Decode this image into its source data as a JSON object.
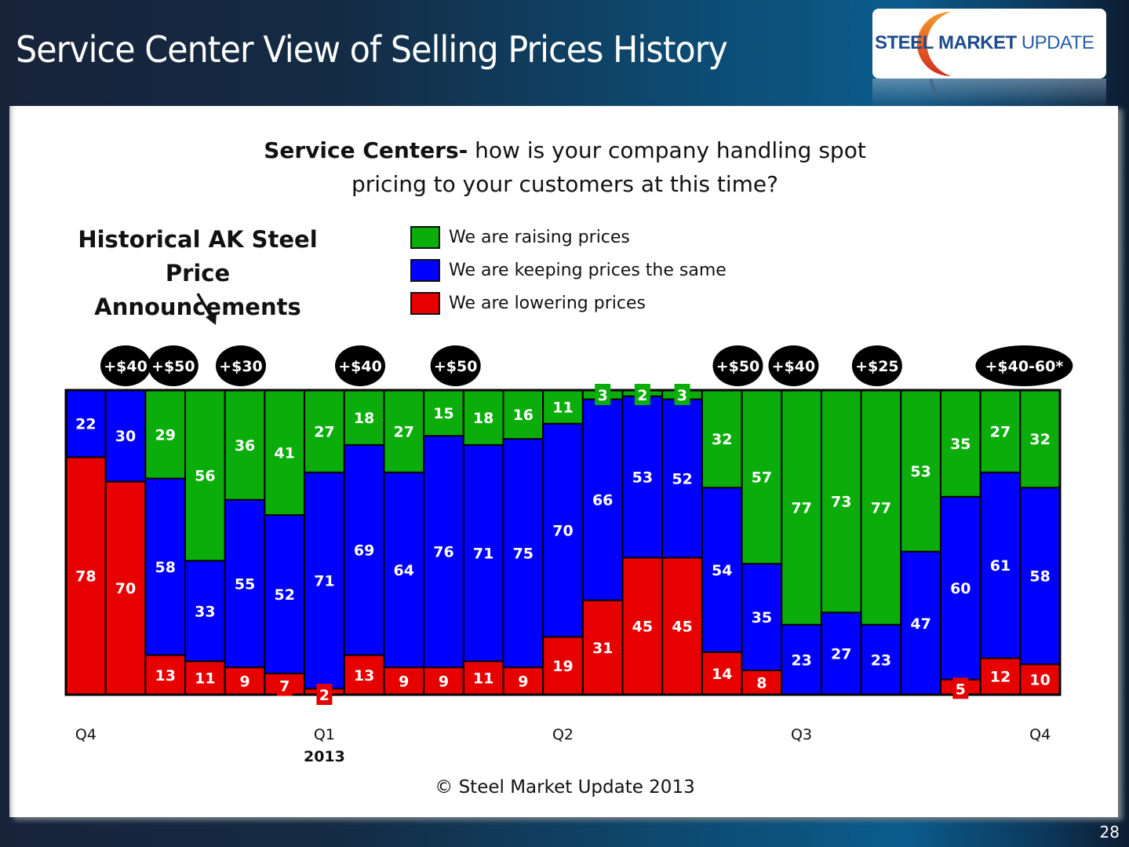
{
  "slide": {
    "title": "Service Center View of Selling Prices History",
    "page_number": "28",
    "copyright": "© Steel Market Update 2013"
  },
  "logo": {
    "word1": "STEEL",
    "word2": "MARKET",
    "word3": "UPDATE",
    "colors": {
      "text": "#1e4b8c",
      "arc_top": "#f39a2b",
      "arc_bottom": "#d42a1e"
    }
  },
  "question": {
    "bold": "Service Centers-",
    "line1_rest": " how is your company handling spot",
    "line2": "pricing to your customers at this time?"
  },
  "annotation": {
    "line1": "Historical AK Steel",
    "line2": "Price Announcements"
  },
  "chart_data": {
    "type": "bar",
    "stacked": true,
    "normalized_percent": true,
    "title": "Service Centers- how is your company handling spot pricing to your customers at this time?",
    "xlabel": "",
    "ylabel": "",
    "ylim": [
      0,
      100
    ],
    "grid": false,
    "legend_position": "top",
    "series": [
      {
        "name": "We are lowering prices",
        "color": "#e60000",
        "values": [
          78,
          70,
          13,
          11,
          9,
          7,
          2,
          13,
          9,
          9,
          11,
          9,
          19,
          31,
          45,
          45,
          14,
          8,
          0,
          0,
          0,
          0,
          5,
          12,
          10
        ]
      },
      {
        "name": "We are keeping prices the same",
        "color": "#0000ff",
        "values": [
          22,
          30,
          58,
          33,
          55,
          52,
          71,
          69,
          64,
          76,
          71,
          75,
          70,
          66,
          53,
          52,
          54,
          35,
          23,
          27,
          23,
          47,
          60,
          61,
          58
        ]
      },
      {
        "name": "We are raising prices",
        "color": "#0aad0a",
        "values": [
          0,
          0,
          29,
          56,
          36,
          41,
          27,
          18,
          27,
          15,
          18,
          16,
          11,
          3,
          2,
          3,
          32,
          57,
          77,
          73,
          77,
          53,
          35,
          27,
          32
        ]
      }
    ],
    "legend": [
      {
        "label": "We are raising prices",
        "color": "#0aad0a"
      },
      {
        "label": "We are keeping prices the same",
        "color": "#0000ff"
      },
      {
        "label": "We are lowering prices",
        "color": "#e60000"
      }
    ],
    "x_tick_labels": [
      {
        "label": "Q4",
        "bar_index": 0.5
      },
      {
        "label": "Q1",
        "bar_index": 6.5,
        "sublabel": "2013"
      },
      {
        "label": "Q2",
        "bar_index": 12.5
      },
      {
        "label": "Q3",
        "bar_index": 18.5
      },
      {
        "label": "Q4",
        "bar_index": 24.5
      }
    ],
    "price_announcements": [
      {
        "label": "+$40",
        "at_bar": 1.5
      },
      {
        "label": "+$50",
        "at_bar": 2.7
      },
      {
        "label": "+$30",
        "at_bar": 4.4
      },
      {
        "label": "+$40",
        "at_bar": 7.4
      },
      {
        "label": "+$50",
        "at_bar": 9.8
      },
      {
        "label": "+$50",
        "at_bar": 16.9
      },
      {
        "label": "+$40",
        "at_bar": 18.3
      },
      {
        "label": "+$25",
        "at_bar": 20.4
      },
      {
        "label": "+$40-60*",
        "at_bar": 24.1,
        "wide": true
      }
    ]
  }
}
